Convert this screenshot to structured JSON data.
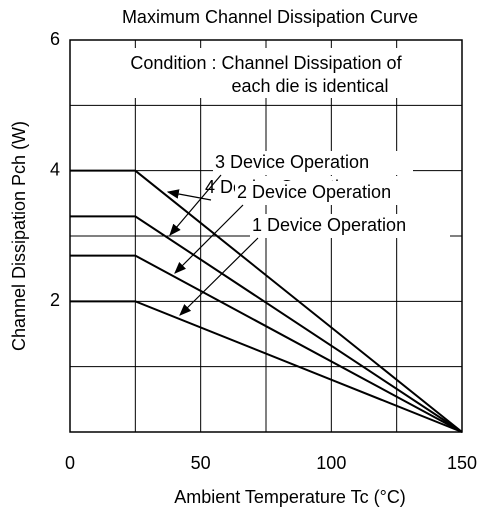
{
  "chart_data": {
    "type": "line",
    "title": "Maximum Channel Dissipation Curve",
    "xlabel": "Ambient Temperature  Tc  (°C)",
    "ylabel": "Channel Dissipation  Pch  (W)",
    "x": [
      0,
      25,
      150
    ],
    "series": [
      {
        "name": "4 Device Operation",
        "color": "#000000",
        "values": [
          4,
          4,
          0
        ]
      },
      {
        "name": "3 Device Operation",
        "color": "#000000",
        "values": [
          3.3,
          3.3,
          0
        ]
      },
      {
        "name": "2 Device Operation",
        "color": "#000000",
        "values": [
          2.7,
          2.7,
          0
        ]
      },
      {
        "name": "1 Device Operation",
        "color": "#000000",
        "values": [
          2,
          2,
          0
        ]
      }
    ],
    "annotations": [
      "Condition : Channel Dissipation of",
      "each die is identical"
    ],
    "xlim": [
      0,
      150
    ],
    "xticks": [
      0,
      50,
      100,
      150
    ],
    "xminor": [
      25,
      75,
      125
    ],
    "ylim": [
      0,
      6
    ],
    "yticks": [
      2,
      4,
      6
    ],
    "yminor": [
      1,
      3,
      5
    ],
    "grid": true
  }
}
